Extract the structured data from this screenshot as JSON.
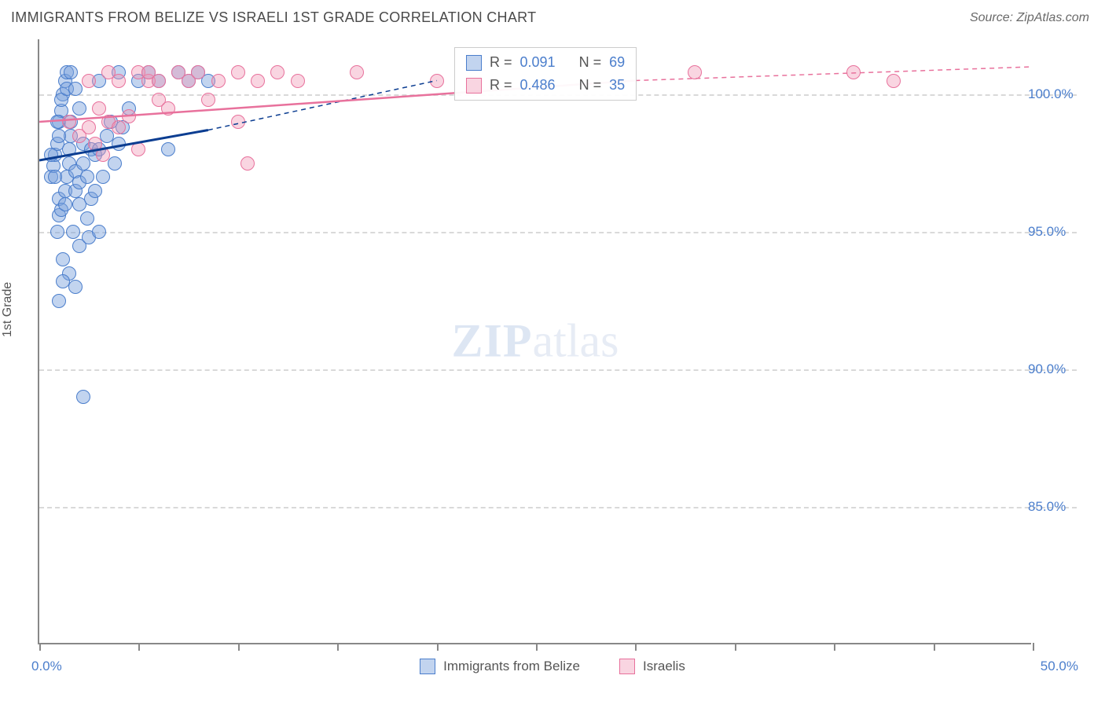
{
  "title": "IMMIGRANTS FROM BELIZE VS ISRAELI 1ST GRADE CORRELATION CHART",
  "source_label": "Source: ",
  "source_name": "ZipAtlas.com",
  "y_axis_title": "1st Grade",
  "watermark_zip": "ZIP",
  "watermark_atlas": "atlas",
  "chart": {
    "type": "scatter",
    "xlim": [
      0,
      50
    ],
    "ylim": [
      80,
      102
    ],
    "x_ticks": [
      0,
      5,
      10,
      15,
      20,
      25,
      30,
      35,
      40,
      45,
      50
    ],
    "y_ticks": [
      85,
      90,
      95,
      100
    ],
    "x_tick_labels": {
      "min": "0.0%",
      "max": "50.0%"
    },
    "y_tick_labels": [
      "85.0%",
      "90.0%",
      "95.0%",
      "100.0%"
    ],
    "background_color": "#ffffff",
    "grid_color": "#d9d9d9",
    "axis_color": "#888888",
    "label_color": "#4b7ecc",
    "label_fontsize": 17,
    "title_fontsize": 18,
    "marker_size": 18,
    "series": [
      {
        "name": "Immigrants from Belize",
        "color_fill": "rgba(120,160,220,0.45)",
        "color_stroke": "#4b7ecc",
        "trend_color": "#0b3d91",
        "trend_dash_color": "#0b3d91",
        "R": "0.091",
        "N": "69",
        "trend": {
          "x1": 0,
          "y1": 97.6,
          "x2": 8.5,
          "y2": 98.7,
          "x2_dash": 20,
          "y2_dash": 100.5
        },
        "points": [
          [
            0.6,
            97.0
          ],
          [
            0.7,
            97.4
          ],
          [
            0.8,
            97.8
          ],
          [
            0.9,
            98.2
          ],
          [
            1.0,
            99.0
          ],
          [
            1.1,
            99.4
          ],
          [
            1.2,
            100.0
          ],
          [
            1.3,
            100.5
          ],
          [
            1.4,
            100.8
          ],
          [
            1.0,
            96.2
          ],
          [
            1.0,
            95.6
          ],
          [
            1.1,
            95.8
          ],
          [
            0.9,
            95.0
          ],
          [
            1.3,
            96.0
          ],
          [
            1.3,
            96.5
          ],
          [
            1.4,
            97.0
          ],
          [
            1.5,
            97.5
          ],
          [
            1.5,
            98.0
          ],
          [
            1.6,
            98.5
          ],
          [
            1.6,
            99.0
          ],
          [
            1.8,
            96.5
          ],
          [
            1.8,
            97.2
          ],
          [
            2.0,
            96.0
          ],
          [
            2.0,
            96.8
          ],
          [
            2.2,
            97.5
          ],
          [
            2.2,
            98.2
          ],
          [
            2.4,
            95.5
          ],
          [
            2.4,
            97.0
          ],
          [
            2.6,
            96.2
          ],
          [
            2.6,
            98.0
          ],
          [
            2.8,
            96.5
          ],
          [
            2.8,
            97.8
          ],
          [
            3.0,
            98.0
          ],
          [
            3.0,
            100.5
          ],
          [
            3.2,
            97.0
          ],
          [
            3.4,
            98.5
          ],
          [
            3.6,
            99.0
          ],
          [
            3.8,
            97.5
          ],
          [
            4.0,
            98.2
          ],
          [
            4.0,
            100.8
          ],
          [
            4.2,
            98.8
          ],
          [
            4.5,
            99.5
          ],
          [
            5.0,
            100.5
          ],
          [
            5.5,
            100.8
          ],
          [
            6.0,
            100.5
          ],
          [
            6.5,
            98.0
          ],
          [
            7.0,
            100.8
          ],
          [
            7.5,
            100.5
          ],
          [
            8.0,
            100.8
          ],
          [
            8.5,
            100.5
          ],
          [
            1.7,
            95.0
          ],
          [
            2.0,
            94.5
          ],
          [
            1.2,
            94.0
          ],
          [
            2.5,
            94.8
          ],
          [
            3.0,
            95.0
          ],
          [
            1.5,
            93.5
          ],
          [
            1.8,
            93.0
          ],
          [
            1.2,
            93.2
          ],
          [
            1.0,
            92.5
          ],
          [
            2.2,
            89.0
          ],
          [
            0.8,
            97.0
          ],
          [
            0.6,
            97.8
          ],
          [
            1.0,
            98.5
          ],
          [
            1.1,
            99.8
          ],
          [
            0.9,
            99.0
          ],
          [
            1.4,
            100.2
          ],
          [
            1.6,
            100.8
          ],
          [
            1.8,
            100.2
          ],
          [
            2.0,
            99.5
          ]
        ]
      },
      {
        "name": "Israelis",
        "color_fill": "rgba(240,150,180,0.40)",
        "color_stroke": "#e8719c",
        "trend_color": "#e8719c",
        "trend_dash_color": "#e8719c",
        "R": "0.486",
        "N": "35",
        "trend": {
          "x1": 0,
          "y1": 99.0,
          "x2": 30,
          "y2": 100.5,
          "x2_dash": 50,
          "y2_dash": 101.0
        },
        "points": [
          [
            1.5,
            99.0
          ],
          [
            2.0,
            98.5
          ],
          [
            2.5,
            98.8
          ],
          [
            2.5,
            100.5
          ],
          [
            3.0,
            99.5
          ],
          [
            3.5,
            99.0
          ],
          [
            3.5,
            100.8
          ],
          [
            4.0,
            98.8
          ],
          [
            4.0,
            100.5
          ],
          [
            4.5,
            99.2
          ],
          [
            5.0,
            100.8
          ],
          [
            5.0,
            98.0
          ],
          [
            5.5,
            100.5
          ],
          [
            5.5,
            100.8
          ],
          [
            6.0,
            99.8
          ],
          [
            6.0,
            100.5
          ],
          [
            6.5,
            99.5
          ],
          [
            7.0,
            100.8
          ],
          [
            7.5,
            100.5
          ],
          [
            8.0,
            100.8
          ],
          [
            8.5,
            99.8
          ],
          [
            9.0,
            100.5
          ],
          [
            10.0,
            99.0
          ],
          [
            10.0,
            100.8
          ],
          [
            11.0,
            100.5
          ],
          [
            12.0,
            100.8
          ],
          [
            13.0,
            100.5
          ],
          [
            16.0,
            100.8
          ],
          [
            20.0,
            100.5
          ],
          [
            10.5,
            97.5
          ],
          [
            33.0,
            100.8
          ],
          [
            41.0,
            100.8
          ],
          [
            43.0,
            100.5
          ],
          [
            2.8,
            98.2
          ],
          [
            3.2,
            97.8
          ]
        ]
      }
    ]
  },
  "stats_box": {
    "r_label": "R =",
    "n_label": "N ="
  },
  "bottom_legend": [
    "Immigrants from Belize",
    "Israelis"
  ]
}
